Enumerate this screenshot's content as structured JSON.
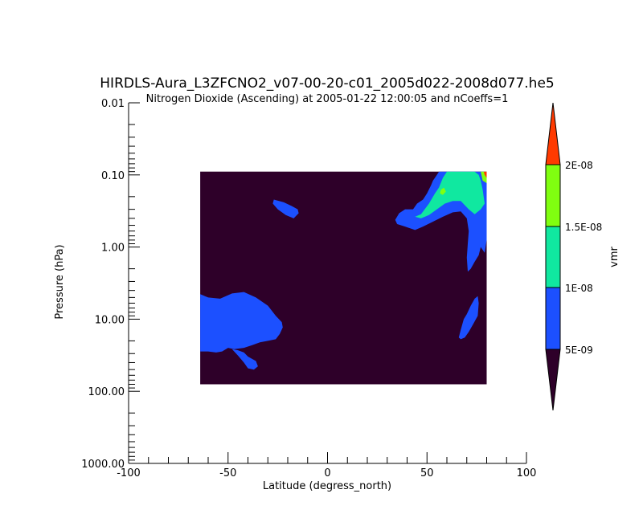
{
  "chart_data": {
    "type": "heatmap",
    "title": "HIRDLS-Aura_L3ZFCNO2_v07-00-20-c01_2005d022-2008d077.he5",
    "subtitle": "Nitrogen Dioxide (Ascending) at 2005-01-22 12:00:05 and nCoeffs=1",
    "xlabel": "Latitude (degress_north)",
    "ylabel": "Pressure (hPa)",
    "xlim": [
      -100,
      100
    ],
    "ylim": [
      1000,
      0.01
    ],
    "y_scale": "log",
    "x_ticks": [
      "-100",
      "-50",
      "0",
      "50",
      "100"
    ],
    "y_ticks": [
      "0.01",
      "0.10",
      "1.00",
      "10.00",
      "100.00",
      "1000.00"
    ],
    "data_extent": {
      "lat": [
        -64,
        80
      ],
      "pressure": [
        0.09,
        80
      ]
    },
    "colorbar": {
      "label": "vmr",
      "ticks": [
        "5E-09",
        "1E-08",
        "1.5E-08",
        "2E-08"
      ],
      "levels": [
        {
          "range": "< 5E-09",
          "color": "#2e0029"
        },
        {
          "range": "5E-09 – 1E-08",
          "color": "#1c50ff"
        },
        {
          "range": "1E-08 – 1.5E-08",
          "color": "#10e8a0"
        },
        {
          "range": "1.5E-08 – 2E-08",
          "color": "#80ff10"
        },
        {
          "range": "> 2E-08",
          "color": "#ff3a00"
        }
      ]
    },
    "regions": [
      {
        "name": "southern-high-latitude-blob",
        "level": 1,
        "points": [
          [
            -64,
            4.5
          ],
          [
            -60,
            5.0
          ],
          [
            -54,
            5.2
          ],
          [
            -48,
            4.4
          ],
          [
            -42,
            4.2
          ],
          [
            -36,
            5.0
          ],
          [
            -30,
            6.5
          ],
          [
            -26,
            9
          ],
          [
            -23,
            11
          ],
          [
            -22.5,
            13
          ],
          [
            -24,
            16
          ],
          [
            -26,
            19
          ],
          [
            -30,
            20
          ],
          [
            -34,
            21
          ],
          [
            -38,
            23
          ],
          [
            -42,
            25
          ],
          [
            -47,
            26
          ],
          [
            -50,
            25
          ],
          [
            -53,
            28
          ],
          [
            -56,
            29
          ],
          [
            -60,
            28
          ],
          [
            -64,
            28
          ]
        ]
      },
      {
        "name": "southern-tail",
        "level": 1,
        "points": [
          [
            -48,
            26
          ],
          [
            -45,
            27
          ],
          [
            -42,
            29
          ],
          [
            -40,
            33
          ],
          [
            -36,
            38
          ],
          [
            -35,
            45
          ],
          [
            -37,
            50
          ],
          [
            -40,
            48
          ],
          [
            -42,
            40
          ],
          [
            -45,
            32
          ]
        ]
      },
      {
        "name": "southern-upper-blob",
        "level": 1,
        "points": [
          [
            -27,
            0.22
          ],
          [
            -22,
            0.24
          ],
          [
            -18,
            0.27
          ],
          [
            -15,
            0.3
          ],
          [
            -14.5,
            0.34
          ],
          [
            -17,
            0.4
          ],
          [
            -21,
            0.36
          ],
          [
            -25,
            0.3
          ],
          [
            -27.5,
            0.25
          ]
        ]
      },
      {
        "name": "northern-upper-band",
        "level": 1,
        "points": [
          [
            34,
            0.42
          ],
          [
            36,
            0.34
          ],
          [
            39,
            0.3
          ],
          [
            43,
            0.3
          ],
          [
            45,
            0.25
          ],
          [
            48,
            0.22
          ],
          [
            50,
            0.18
          ],
          [
            52,
            0.14
          ],
          [
            53,
            0.12
          ],
          [
            55,
            0.1
          ],
          [
            56,
            0.09
          ],
          [
            80,
            0.09
          ],
          [
            80,
            0.2
          ],
          [
            80,
            0.8
          ],
          [
            79,
            1.2
          ],
          [
            77,
            1.0
          ],
          [
            76,
            1.3
          ],
          [
            74,
            1.6
          ],
          [
            72,
            2.0
          ],
          [
            70.5,
            2.2
          ],
          [
            70,
            1.4
          ],
          [
            70.5,
            0.9
          ],
          [
            71,
            0.6
          ],
          [
            70,
            0.4
          ],
          [
            67,
            0.32
          ],
          [
            63,
            0.33
          ],
          [
            58,
            0.38
          ],
          [
            52,
            0.46
          ],
          [
            48,
            0.52
          ],
          [
            44,
            0.58
          ],
          [
            39,
            0.52
          ],
          [
            35,
            0.48
          ]
        ]
      },
      {
        "name": "northern-green-band",
        "level": 2,
        "points": [
          [
            44,
            0.38
          ],
          [
            47,
            0.35
          ],
          [
            51,
            0.25
          ],
          [
            54,
            0.18
          ],
          [
            56,
            0.15
          ],
          [
            58,
            0.11
          ],
          [
            60,
            0.09
          ],
          [
            74,
            0.09
          ],
          [
            76,
            0.1
          ],
          [
            77,
            0.12
          ],
          [
            78,
            0.16
          ],
          [
            79,
            0.25
          ],
          [
            77,
            0.3
          ],
          [
            74,
            0.35
          ],
          [
            71,
            0.3
          ],
          [
            67,
            0.23
          ],
          [
            63,
            0.23
          ],
          [
            59,
            0.25
          ],
          [
            55,
            0.3
          ],
          [
            51,
            0.36
          ],
          [
            47,
            0.4
          ]
        ]
      },
      {
        "name": "northern-yellow-spot",
        "level": 3,
        "points": [
          [
            57,
            0.16
          ],
          [
            58.5,
            0.15
          ],
          [
            59.5,
            0.17
          ],
          [
            58,
            0.19
          ],
          [
            56.5,
            0.18
          ]
        ]
      },
      {
        "name": "northern-yellow-corner",
        "level": 3,
        "points": [
          [
            77,
            0.09
          ],
          [
            80,
            0.09
          ],
          [
            80,
            0.13
          ],
          [
            78,
            0.12
          ]
        ]
      },
      {
        "name": "northern-red-corner",
        "level": 4,
        "points": [
          [
            78.5,
            0.09
          ],
          [
            80,
            0.09
          ],
          [
            80,
            0.11
          ],
          [
            79,
            0.1
          ]
        ]
      },
      {
        "name": "northern-mid-blob",
        "level": 1,
        "points": [
          [
            66,
            18
          ],
          [
            67,
            14
          ],
          [
            68.5,
            10
          ],
          [
            70,
            8.5
          ],
          [
            72,
            6.5
          ],
          [
            74,
            5.2
          ],
          [
            75.5,
            4.8
          ],
          [
            76,
            6
          ],
          [
            75.5,
            9
          ],
          [
            73,
            12
          ],
          [
            71,
            15
          ],
          [
            69,
            18
          ],
          [
            67,
            19
          ]
        ]
      }
    ]
  }
}
